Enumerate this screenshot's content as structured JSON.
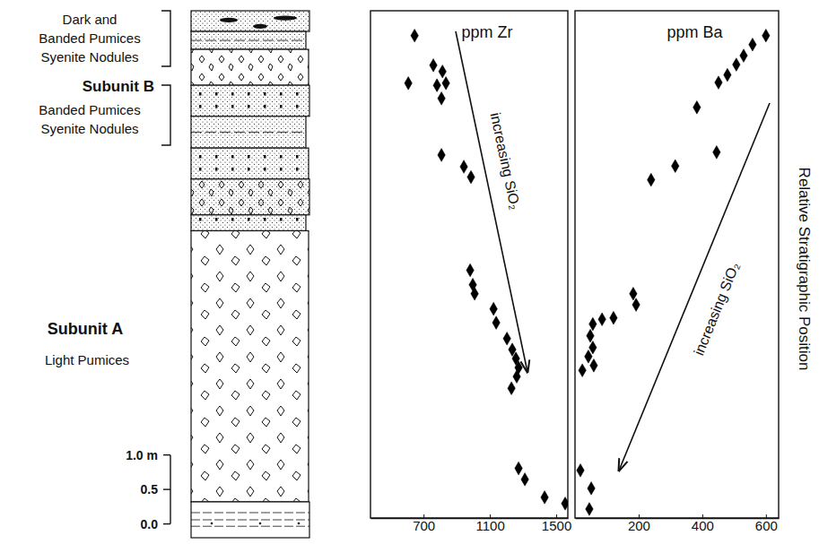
{
  "column": {
    "subunit_b": {
      "title": "Subunit B",
      "upper": [
        "Dark and",
        "Banded Pumices",
        "Syenite Nodules"
      ],
      "lower": [
        "Banded Pumices",
        "Syenite Nodules"
      ]
    },
    "subunit_a": {
      "title": "Subunit A",
      "description": "Light Pumices"
    },
    "scale": {
      "ylim": [
        -0.2,
        7.44
      ],
      "yticks": [
        {
          "value": 0,
          "label": "0.0"
        },
        {
          "value": 0.5,
          "label": "0.5"
        },
        {
          "value": 1,
          "label": "1.0 m"
        }
      ]
    }
  },
  "chart_data": [
    {
      "type": "scatter",
      "title": "ppm Zr",
      "annotation": "increasing SiO₂",
      "x": [
        646,
        608,
        759,
        814,
        781,
        835,
        808,
        808,
        943,
        986,
        981,
        997,
        1008,
        1122,
        1138,
        1203,
        1235,
        1257,
        1273,
        1262,
        1230,
        1273,
        1311,
        1430,
        1554
      ],
      "values": [
        7.08,
        6.39,
        6.65,
        6.56,
        6.36,
        6.39,
        6.17,
        5.35,
        5.18,
        5.03,
        3.68,
        3.47,
        3.34,
        3.12,
        2.92,
        2.69,
        2.53,
        2.4,
        2.27,
        2.14,
        1.97,
        0.81,
        0.65,
        0.39,
        0.3
      ],
      "xlim": [
        380,
        1570
      ],
      "xticks": [
        700,
        1100,
        1500
      ],
      "ylim": [
        0.09,
        7.44
      ],
      "tick_labels": "x",
      "marker": "diamond",
      "color": "#000000"
    },
    {
      "type": "scatter",
      "title": "ppm Ba",
      "annotation": "increasing SiO₂",
      "y_label": "Relative Stratigraphic Position",
      "x": [
        600,
        558,
        530,
        507,
        479,
        451,
        383,
        445,
        315,
        239,
        183,
        192,
        121,
        85,
        56,
        48,
        56,
        42,
        59,
        23,
        17,
        51,
        45
      ],
      "values": [
        7.08,
        6.95,
        6.79,
        6.66,
        6.51,
        6.4,
        6.04,
        5.39,
        5.19,
        4.99,
        3.34,
        3.18,
        2.99,
        2.97,
        2.9,
        2.73,
        2.56,
        2.43,
        2.3,
        2.23,
        0.78,
        0.52,
        0.22
      ],
      "xlim": [
        0,
        640
      ],
      "xticks": [
        200,
        400,
        600
      ],
      "ylim": [
        0.09,
        7.44
      ],
      "tick_labels": "x",
      "marker": "diamond",
      "color": "#000000"
    }
  ]
}
